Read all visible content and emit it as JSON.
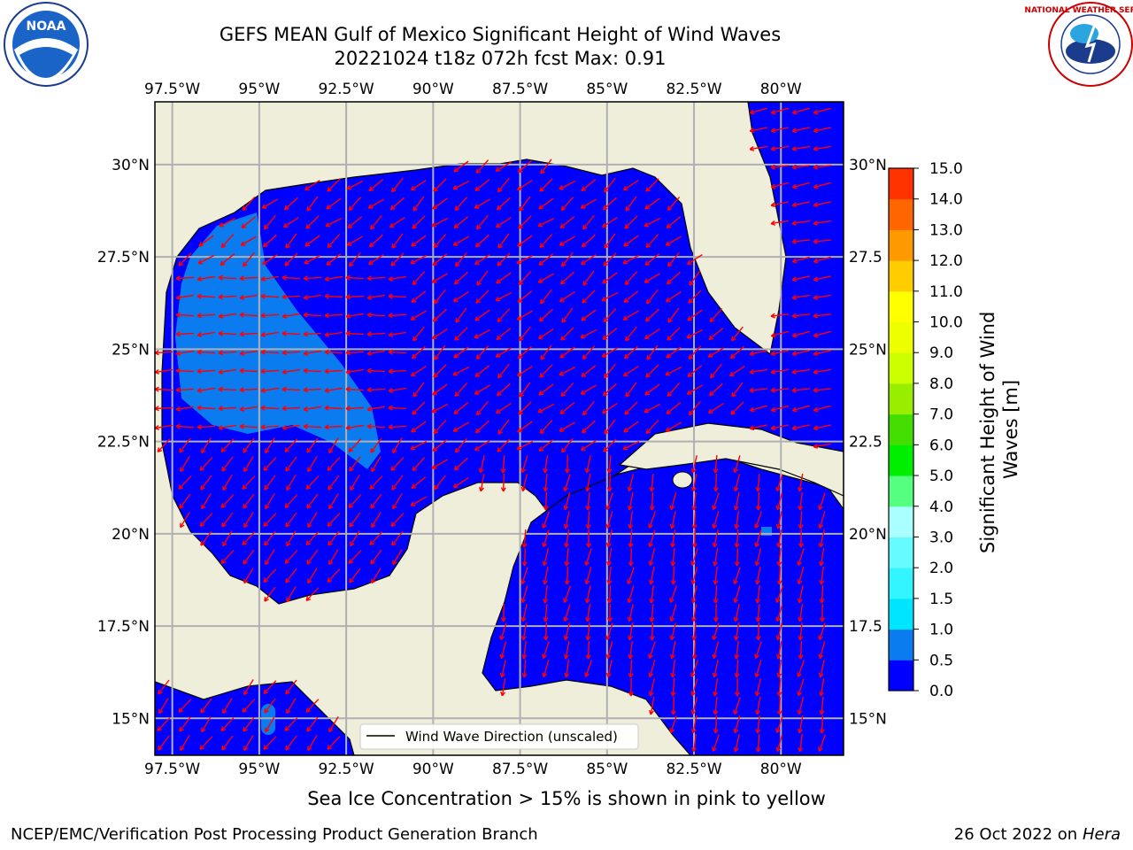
{
  "title": {
    "line1": "GEFS MEAN Gulf of Mexico Significant Height of Wind Waves",
    "line2": "20221024 t18z 072h fcst   Max: 0.91"
  },
  "subtitle": "Sea Ice Concentration > 15% is shown in pink to yellow",
  "footer": {
    "left": "NCEP/EMC/Verification Post Processing Product Generation Branch",
    "date": "26 Oct 2022 on",
    "host": "Hera"
  },
  "logos": {
    "left": {
      "icon": "noaa-logo",
      "text": "NOAA"
    },
    "right": {
      "icon": "nws-logo",
      "text": "NATIONAL WEATHER SERVICE"
    }
  },
  "map": {
    "lon_range": [
      -98.0,
      -78.2
    ],
    "lat_range": [
      14.0,
      31.7
    ],
    "lon_ticks": [
      {
        "value": -97.5,
        "label": "97.5°W"
      },
      {
        "value": -95.0,
        "label": "95°W"
      },
      {
        "value": -92.5,
        "label": "92.5°W"
      },
      {
        "value": -90.0,
        "label": "90°W"
      },
      {
        "value": -87.5,
        "label": "87.5°W"
      },
      {
        "value": -85.0,
        "label": "85°W"
      },
      {
        "value": -82.5,
        "label": "82.5°W"
      },
      {
        "value": -80.0,
        "label": "80°W"
      }
    ],
    "lat_ticks_left": [
      {
        "value": 30.0,
        "label": "30°N"
      },
      {
        "value": 27.5,
        "label": "27.5°N"
      },
      {
        "value": 25.0,
        "label": "25°N"
      },
      {
        "value": 22.5,
        "label": "22.5°N"
      },
      {
        "value": 20.0,
        "label": "20°N"
      },
      {
        "value": 17.5,
        "label": "17.5°N"
      },
      {
        "value": 15.0,
        "label": "15°N"
      }
    ],
    "lat_ticks_right": [
      {
        "value": 30.0,
        "label": "30°N"
      },
      {
        "value": 27.5,
        "label": "27.5"
      },
      {
        "value": 25.0,
        "label": "25°N"
      },
      {
        "value": 22.5,
        "label": "22.5"
      },
      {
        "value": 20.0,
        "label": "20°N"
      },
      {
        "value": 17.5,
        "label": "17.5"
      },
      {
        "value": 15.0,
        "label": "15°N"
      }
    ],
    "grid": true,
    "colors": {
      "land": "#efeedb",
      "ocean_low": "#0000ff",
      "ocean_mid": "#0a7cf0",
      "arrow": "#ff0000",
      "grid": "#b0b0b0",
      "coast": "#000000"
    },
    "max_value": 0.91,
    "legend": {
      "label": "Wind Wave Direction (unscaled)",
      "placement": "lower-center"
    }
  },
  "colorbar": {
    "label": "Significant Height of Wind Waves [m]",
    "label_line1": "Significant Height of Wind",
    "label_line2": "Waves [m]",
    "ticks": [
      "0.0",
      "0.5",
      "1.0",
      "1.5",
      "2.0",
      "3.0",
      "4.0",
      "5.0",
      "6.0",
      "7.0",
      "8.0",
      "9.0",
      "10.0",
      "11.0",
      "12.0",
      "13.0",
      "14.0",
      "15.0"
    ],
    "colors": [
      "#0000ff",
      "#0a7cf0",
      "#00e5ff",
      "#33f5ff",
      "#66fbff",
      "#aaffff",
      "#55ff80",
      "#00ee00",
      "#44dd00",
      "#99ee00",
      "#ccff00",
      "#eeff00",
      "#ffff00",
      "#ffcc00",
      "#ff9900",
      "#ff6600",
      "#ff3300",
      "#ff0000"
    ]
  }
}
